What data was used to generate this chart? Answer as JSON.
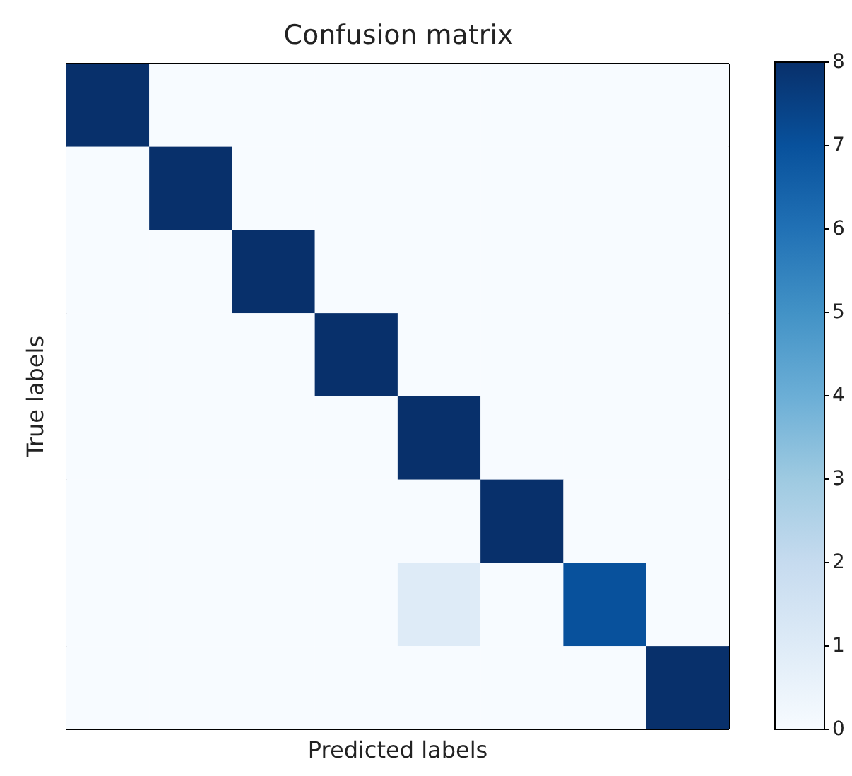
{
  "chart_data": {
    "type": "heatmap",
    "title": "Confusion matrix",
    "xlabel": "Predicted labels",
    "ylabel": "True labels",
    "categories": [
      null,
      null,
      null,
      null,
      null,
      null,
      null,
      null
    ],
    "y_categories": [
      null,
      null,
      null,
      null,
      null,
      null,
      null,
      null
    ],
    "cells": [
      [
        8,
        0,
        0,
        0,
        0,
        0,
        0,
        0
      ],
      [
        0,
        8,
        0,
        0,
        0,
        0,
        0,
        0
      ],
      [
        0,
        0,
        8,
        0,
        0,
        0,
        0,
        0
      ],
      [
        0,
        0,
        0,
        8,
        0,
        0,
        0,
        0
      ],
      [
        0,
        0,
        0,
        0,
        8,
        0,
        0,
        0
      ],
      [
        0,
        0,
        0,
        0,
        0,
        8,
        0,
        0
      ],
      [
        0,
        0,
        0,
        0,
        1,
        0,
        7,
        0
      ],
      [
        0,
        0,
        0,
        0,
        0,
        0,
        0,
        8
      ]
    ],
    "clim": [
      0,
      8
    ],
    "cticks": [
      0,
      1,
      2,
      3,
      4,
      5,
      6,
      7,
      8
    ]
  }
}
